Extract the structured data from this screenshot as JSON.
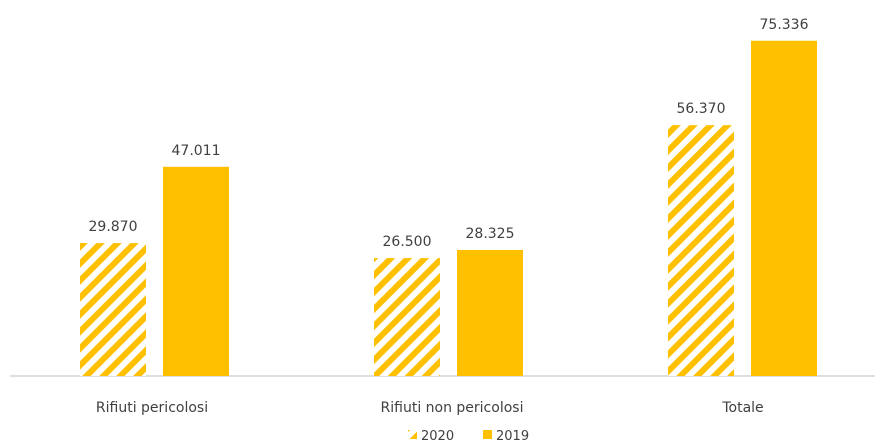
{
  "chart_data": {
    "type": "bar",
    "categories": [
      "Rifiuti pericolosi",
      "Rifiuti non pericolosi",
      "Totale"
    ],
    "series": [
      {
        "name": "2020",
        "values": [
          29870,
          26500,
          56370
        ],
        "labels": [
          "29.870",
          "26.500",
          "56.370"
        ],
        "color": "#ffc000",
        "pattern": "diagonal-stripes"
      },
      {
        "name": "2019",
        "values": [
          47011,
          28325,
          75336
        ],
        "labels": [
          "47.011",
          "28.325",
          "75.336"
        ],
        "color": "#ffc000",
        "pattern": "solid"
      }
    ],
    "title": "",
    "xlabel": "",
    "ylabel": "",
    "ylim": [
      0,
      80000
    ],
    "grid": false,
    "y_axis_visible": false,
    "legend_position": "bottom"
  }
}
